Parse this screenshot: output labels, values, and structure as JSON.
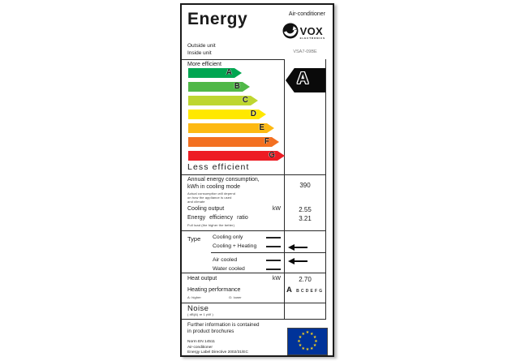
{
  "label": {
    "header": {
      "title": "Energy",
      "product_type": "Air-conditioner",
      "brand": "VOX",
      "brand_sub": "ELECTRONICS",
      "outside_unit": "Outside unit",
      "inside_unit": "Inside unit",
      "model": "VSA7-09BE"
    },
    "scale": {
      "more_efficient": "More efficient",
      "less_efficient": "Less efficient",
      "rating": "A",
      "bars": [
        {
          "letter": "A",
          "color": "#00a651",
          "width": 66
        },
        {
          "letter": "B",
          "color": "#50b848",
          "width": 76
        },
        {
          "letter": "C",
          "color": "#bed630",
          "width": 86
        },
        {
          "letter": "D",
          "color": "#ffe800",
          "width": 96
        },
        {
          "letter": "E",
          "color": "#fdb913",
          "width": 106
        },
        {
          "letter": "F",
          "color": "#f37021",
          "width": 112
        },
        {
          "letter": "G",
          "color": "#ed1c24",
          "width": 119
        }
      ]
    },
    "consumption": {
      "label_line1": "Annual energy consumption,",
      "label_line2": "kWh in cooling mode",
      "note_lines": [
        "Actual consumption will depend",
        "on how the appliance is used",
        "and climate"
      ],
      "value": "390"
    },
    "cooling_output": {
      "label": "Cooling output",
      "unit": "kW",
      "value": "2.55"
    },
    "eer": {
      "label": "Energy efficiency ratio",
      "value": "3.21",
      "note": "Full load (the higher the better)"
    },
    "type": {
      "label": "Type",
      "options": [
        {
          "label": "Cooling only",
          "selected": false
        },
        {
          "label": "Cooling + Heating",
          "selected": true
        },
        {
          "label": "Air cooled",
          "selected": true
        },
        {
          "label": "Water cooled",
          "selected": false
        }
      ]
    },
    "heat_output": {
      "label": "Heat output",
      "unit": "kW",
      "value": "2.70"
    },
    "heating_performance": {
      "label": "Heating performance",
      "scale": [
        "A",
        "B",
        "C",
        "D",
        "E",
        "F",
        "G"
      ],
      "note_left": "A: higher",
      "note_right": "G: lower"
    },
    "noise": {
      "label": "Noise",
      "note": "( dB(A) re 1 pW )",
      "value": ""
    },
    "footer": {
      "info_line1": "Further information is contained",
      "info_line2": "in product brochures",
      "norm": "Norm EN 14511",
      "product": "Air-conditioner",
      "directive": "Energy Label Directive 2002/31/EC"
    },
    "colors": {
      "eu_flag_blue": "#003399",
      "eu_star": "#ffd617",
      "arrow_black": "#0a0a0a"
    }
  }
}
